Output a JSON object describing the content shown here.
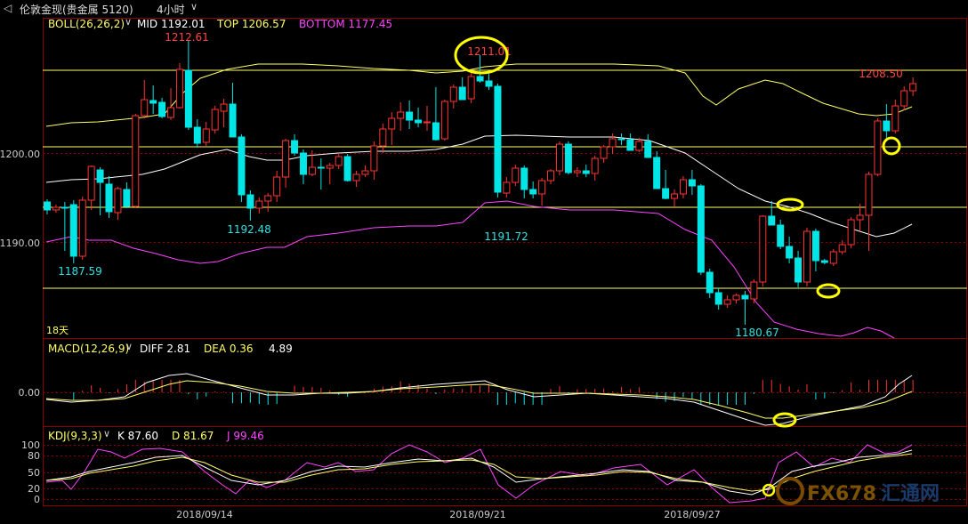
{
  "header": {
    "back_icon": "chevron-left-icon",
    "symbol": "伦敦金现(贵金属 5120)",
    "period": "4小时",
    "period_dropdown_icon": "chevron-down-icon"
  },
  "boll": {
    "name": "BOLL(26,26,2)",
    "mid_label": "MID 1192.01",
    "top_label": "TOP 1206.57",
    "bottom_label": "BOTTOM 1177.45",
    "colors": {
      "mid": "#ffffff",
      "top": "#ffff66",
      "bottom": "#ff44ff"
    }
  },
  "macd": {
    "name": "MACD(12,26,9)",
    "diff_label": "DIFF 2.81",
    "dea_label": "DEA 0.36",
    "macd_value": "4.89",
    "zero_tick": "0.00"
  },
  "kdj": {
    "name": "KDJ(9,3,3)",
    "k_label": "K 87.60",
    "d_label": "D 81.67",
    "j_label": "J 99.46",
    "ticks": [
      "100",
      "80",
      "50",
      "20",
      "0"
    ]
  },
  "price_axis": {
    "ticks": [
      "1200.00",
      "1190.00"
    ]
  },
  "annotations": {
    "high_1": "1212.61",
    "high_2": "1211.01",
    "high_3": "1208.50",
    "low_1": "1187.59",
    "low_2": "1192.48",
    "low_3": "1191.72",
    "low_4": "1180.67",
    "days_marker": "18天"
  },
  "date_axis": [
    "2018/09/14",
    "2018/09/21",
    "2018/09/27"
  ],
  "watermark": {
    "brand": "FX678",
    "cn": "汇通网"
  },
  "colors": {
    "up": "#ff3333",
    "down": "#00e5e5",
    "hline": "#ffff66",
    "circle": "#ffff00"
  },
  "chart_data": {
    "type": "candlestick",
    "hlines": [
      1209.3,
      1200.7,
      1193.9,
      1184.8
    ],
    "candles": [
      [
        1194.5,
        1194.8,
        1193.1,
        1193.6
      ],
      [
        1193.6,
        1194.2,
        1193.3,
        1193.9
      ],
      [
        1193.9,
        1194.5,
        1189.0,
        1193.8
      ],
      [
        1194.2,
        1194.7,
        1187.6,
        1188.4
      ],
      [
        1188.4,
        1195.1,
        1188.0,
        1194.7
      ],
      [
        1194.7,
        1198.6,
        1193.6,
        1198.5
      ],
      [
        1198.1,
        1198.4,
        1193.0,
        1196.7
      ],
      [
        1196.5,
        1197.4,
        1192.7,
        1193.4
      ],
      [
        1193.3,
        1196.2,
        1192.5,
        1196.0
      ],
      [
        1195.9,
        1196.7,
        1193.8,
        1194.0
      ],
      [
        1194.0,
        1204.4,
        1193.8,
        1204.2
      ],
      [
        1204.2,
        1208.2,
        1203.9,
        1206.0
      ],
      [
        1205.9,
        1207.6,
        1204.4,
        1205.6
      ],
      [
        1205.7,
        1206.2,
        1203.9,
        1204.1
      ],
      [
        1204.0,
        1207.3,
        1203.7,
        1205.1
      ],
      [
        1205.1,
        1210.1,
        1205.0,
        1209.4
      ],
      [
        1209.3,
        1212.6,
        1202.6,
        1202.9
      ],
      [
        1202.9,
        1203.8,
        1200.6,
        1201.1
      ],
      [
        1201.2,
        1203.5,
        1200.8,
        1202.7
      ],
      [
        1202.6,
        1205.3,
        1202.2,
        1204.9
      ],
      [
        1204.7,
        1206.1,
        1202.9,
        1205.5
      ],
      [
        1205.5,
        1207.9,
        1201.9,
        1201.8
      ],
      [
        1201.8,
        1202.1,
        1194.5,
        1195.3
      ],
      [
        1195.3,
        1195.8,
        1192.4,
        1193.8
      ],
      [
        1193.8,
        1195.0,
        1193.2,
        1194.6
      ],
      [
        1194.6,
        1195.5,
        1193.4,
        1195.2
      ],
      [
        1195.2,
        1198.0,
        1194.5,
        1197.3
      ],
      [
        1197.3,
        1201.6,
        1196.1,
        1201.4
      ],
      [
        1201.4,
        1202.1,
        1199.7,
        1200.0
      ],
      [
        1200.0,
        1200.4,
        1196.5,
        1197.6
      ],
      [
        1197.6,
        1200.3,
        1197.4,
        1198.4
      ],
      [
        1198.4,
        1199.4,
        1195.9,
        1198.3
      ],
      [
        1198.3,
        1198.9,
        1196.5,
        1198.6
      ],
      [
        1198.6,
        1199.9,
        1198.2,
        1199.6
      ],
      [
        1199.6,
        1199.9,
        1196.8,
        1196.9
      ],
      [
        1196.9,
        1198.0,
        1196.2,
        1197.6
      ],
      [
        1197.6,
        1198.6,
        1197.3,
        1198.0
      ],
      [
        1198.0,
        1201.3,
        1197.0,
        1200.8
      ],
      [
        1200.8,
        1203.3,
        1200.0,
        1202.7
      ],
      [
        1202.7,
        1204.6,
        1200.9,
        1203.9
      ],
      [
        1203.9,
        1205.7,
        1202.5,
        1204.6
      ],
      [
        1204.6,
        1205.9,
        1202.7,
        1203.7
      ],
      [
        1203.7,
        1205.1,
        1202.9,
        1203.4
      ],
      [
        1203.4,
        1205.3,
        1202.5,
        1203.5
      ],
      [
        1203.4,
        1207.4,
        1201.4,
        1201.5
      ],
      [
        1201.6,
        1206.0,
        1201.4,
        1205.8
      ],
      [
        1205.8,
        1207.7,
        1205.0,
        1207.4
      ],
      [
        1207.4,
        1208.5,
        1206.1,
        1206.0
      ],
      [
        1206.1,
        1209.3,
        1205.6,
        1208.6
      ],
      [
        1208.6,
        1211.0,
        1207.9,
        1208.1
      ],
      [
        1208.1,
        1208.9,
        1207.1,
        1207.5
      ],
      [
        1207.5,
        1207.8,
        1195.0,
        1195.6
      ],
      [
        1195.5,
        1197.3,
        1195.0,
        1196.7
      ],
      [
        1196.7,
        1198.7,
        1196.3,
        1198.3
      ],
      [
        1198.3,
        1198.6,
        1194.9,
        1195.9
      ],
      [
        1195.9,
        1196.8,
        1194.9,
        1195.4
      ],
      [
        1195.4,
        1197.2,
        1194.1,
        1196.9
      ],
      [
        1196.9,
        1198.2,
        1196.5,
        1198.0
      ],
      [
        1198.0,
        1201.3,
        1197.5,
        1201.0
      ],
      [
        1201.0,
        1201.3,
        1197.6,
        1197.8
      ],
      [
        1197.8,
        1198.4,
        1197.3,
        1198.0
      ],
      [
        1198.0,
        1198.7,
        1197.3,
        1197.7
      ],
      [
        1197.7,
        1199.7,
        1196.9,
        1199.4
      ],
      [
        1199.4,
        1200.9,
        1198.9,
        1200.7
      ],
      [
        1200.7,
        1202.2,
        1199.9,
        1201.6
      ],
      [
        1201.6,
        1202.2,
        1200.9,
        1201.5
      ],
      [
        1201.5,
        1202.2,
        1200.3,
        1200.3
      ],
      [
        1200.3,
        1201.7,
        1200.1,
        1201.3
      ],
      [
        1201.3,
        1202.1,
        1199.7,
        1199.5
      ],
      [
        1199.5,
        1200.2,
        1196.2,
        1196.0
      ],
      [
        1196.0,
        1198.1,
        1194.8,
        1194.9
      ],
      [
        1194.9,
        1195.9,
        1193.9,
        1195.4
      ],
      [
        1195.4,
        1197.4,
        1194.9,
        1197.0
      ],
      [
        1197.0,
        1198.1,
        1195.3,
        1196.3
      ],
      [
        1196.3,
        1196.5,
        1186.3,
        1186.6
      ],
      [
        1186.6,
        1187.0,
        1183.7,
        1184.3
      ],
      [
        1184.3,
        1184.8,
        1182.4,
        1183.0
      ],
      [
        1183.0,
        1184.0,
        1182.6,
        1183.5
      ],
      [
        1183.5,
        1184.2,
        1183.1,
        1184.0
      ],
      [
        1184.0,
        1184.5,
        1180.7,
        1183.6
      ],
      [
        1183.6,
        1185.8,
        1183.1,
        1185.5
      ],
      [
        1185.5,
        1193.0,
        1185.0,
        1192.9
      ],
      [
        1192.9,
        1194.6,
        1192.2,
        1191.9
      ],
      [
        1191.9,
        1192.5,
        1189.2,
        1189.5
      ],
      [
        1189.5,
        1190.6,
        1187.6,
        1188.2
      ],
      [
        1188.2,
        1189.0,
        1184.9,
        1185.5
      ],
      [
        1185.5,
        1191.6,
        1185.0,
        1191.2
      ],
      [
        1191.2,
        1191.5,
        1186.7,
        1187.9
      ],
      [
        1187.9,
        1188.1,
        1187.5,
        1187.7
      ],
      [
        1187.6,
        1189.2,
        1187.3,
        1188.9
      ],
      [
        1188.9,
        1190.2,
        1188.6,
        1189.7
      ],
      [
        1189.7,
        1192.8,
        1189.3,
        1192.5
      ],
      [
        1192.5,
        1194.3,
        1191.2,
        1193.0
      ],
      [
        1193.0,
        1197.9,
        1189.0,
        1197.6
      ],
      [
        1197.6,
        1203.9,
        1197.4,
        1203.6
      ],
      [
        1203.6,
        1205.5,
        1201.3,
        1202.5
      ],
      [
        1202.5,
        1206.0,
        1202.2,
        1205.3
      ],
      [
        1205.3,
        1207.5,
        1204.8,
        1207.0
      ],
      [
        1207.0,
        1208.5,
        1206.4,
        1207.8
      ]
    ]
  }
}
